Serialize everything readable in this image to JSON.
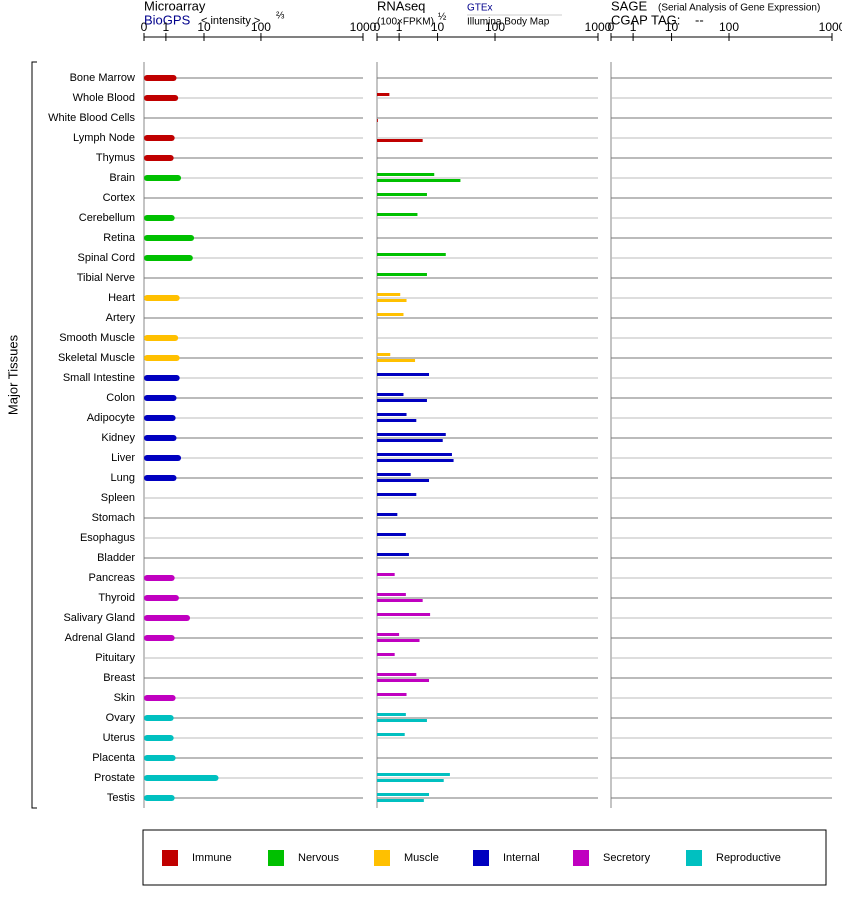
{
  "chart_data": {
    "type": "tissue-expression",
    "panels": [
      {
        "title": "Microarray",
        "source": "BioGPS",
        "unit": "< intensity >",
        "exponent": "⅔"
      },
      {
        "title": "RNAseq",
        "unit": "(100×FPKM)",
        "exponent": "½",
        "source": "GTEx",
        "source2": "Illumina Body Map"
      },
      {
        "title": "SAGE",
        "subtitle": "(Serial Analysis of Gene Expression)",
        "tag_label": "CGAP TAG:",
        "tag": "--"
      }
    ],
    "xlim": [
      0,
      1000
    ],
    "xticks": [
      0,
      1,
      10,
      100,
      1000
    ],
    "ylabel": "Major Tissues",
    "grid": true,
    "groups": [
      {
        "name": "Immune",
        "color": "#c00000",
        "tissues": [
          {
            "name": "Bone Marrow",
            "microarray": 1.9,
            "gtex": null,
            "illumina": null
          },
          {
            "name": "Whole Blood",
            "microarray": 2.1,
            "gtex": 0.56,
            "illumina": null
          },
          {
            "name": "White Blood Cells",
            "microarray": null,
            "gtex": null,
            "illumina": 0.04
          },
          {
            "name": "Lymph Node",
            "microarray": 1.7,
            "gtex": null,
            "illumina": 4.1
          },
          {
            "name": "Thymus",
            "microarray": 1.6,
            "gtex": null,
            "illumina": null
          }
        ]
      },
      {
        "name": "Nervous",
        "color": "#00c000",
        "tissues": [
          {
            "name": "Brain",
            "microarray": 2.5,
            "gtex": 8.2,
            "illumina": 25
          },
          {
            "name": "Cortex",
            "microarray": null,
            "gtex": 5.3,
            "illumina": null
          },
          {
            "name": "Cerebellum",
            "microarray": 1.7,
            "gtex": 3.0,
            "illumina": null
          },
          {
            "name": "Retina",
            "microarray": 5.5,
            "gtex": null,
            "illumina": null
          },
          {
            "name": "Spinal Cord",
            "microarray": 5.1,
            "gtex": 13.9,
            "illumina": null
          },
          {
            "name": "Tibial Nerve",
            "microarray": null,
            "gtex": 5.3,
            "illumina": null
          }
        ]
      },
      {
        "name": "Muscle",
        "color": "#ffc000",
        "tissues": [
          {
            "name": "Heart",
            "microarray": 2.3,
            "gtex": 1.07,
            "illumina": 1.56
          },
          {
            "name": "Artery",
            "microarray": null,
            "gtex": 1.3,
            "illumina": null
          },
          {
            "name": "Smooth Muscle",
            "microarray": 2.1,
            "gtex": null,
            "illumina": null
          },
          {
            "name": "Skeletal Muscle",
            "microarray": 2.3,
            "gtex": 0.6,
            "illumina": 2.6
          }
        ]
      },
      {
        "name": "Internal",
        "color": "#0000c0",
        "tissues": [
          {
            "name": "Small Intestine",
            "microarray": 2.3,
            "gtex": 6.0,
            "illumina": null
          },
          {
            "name": "Colon",
            "microarray": 1.9,
            "gtex": 1.3,
            "illumina": 5.3
          },
          {
            "name": "Adipocyte",
            "microarray": 1.8,
            "gtex": 1.56,
            "illumina": 2.8
          },
          {
            "name": "Kidney",
            "microarray": 1.9,
            "gtex": 13.9,
            "illumina": 12.3
          },
          {
            "name": "Liver",
            "microarray": 2.5,
            "gtex": 17.8,
            "illumina": 19
          },
          {
            "name": "Lung",
            "microarray": 1.9,
            "gtex": 2.0,
            "illumina": 6.0
          },
          {
            "name": "Spleen",
            "microarray": null,
            "gtex": 2.8,
            "illumina": null
          },
          {
            "name": "Stomach",
            "microarray": null,
            "gtex": 0.92,
            "illumina": null
          },
          {
            "name": "Esophagus",
            "microarray": null,
            "gtex": 1.5,
            "illumina": null
          },
          {
            "name": "Bladder",
            "microarray": null,
            "gtex": 1.8,
            "illumina": null
          }
        ]
      },
      {
        "name": "Secretory",
        "color": "#c000c0",
        "tissues": [
          {
            "name": "Pancreas",
            "microarray": 1.7,
            "gtex": 0.8,
            "illumina": null
          },
          {
            "name": "Thyroid",
            "microarray": 2.2,
            "gtex": 1.5,
            "illumina": 4.1
          },
          {
            "name": "Salivary Gland",
            "microarray": 4.3,
            "gtex": 6.4,
            "illumina": null
          },
          {
            "name": "Adrenal Gland",
            "microarray": 1.7,
            "gtex": 1.0,
            "illumina": 3.4
          },
          {
            "name": "Pituitary",
            "microarray": null,
            "gtex": 0.8,
            "illumina": null
          },
          {
            "name": "Breast",
            "microarray": null,
            "gtex": 2.8,
            "illumina": 6.0
          },
          {
            "name": "Skin",
            "microarray": 1.8,
            "gtex": 1.56,
            "illumina": null
          }
        ]
      },
      {
        "name": "Reproductive",
        "color": "#00c0c0",
        "tissues": [
          {
            "name": "Ovary",
            "microarray": 1.6,
            "gtex": 1.5,
            "illumina": 5.3
          },
          {
            "name": "Uterus",
            "microarray": 1.6,
            "gtex": 1.4,
            "illumina": null
          },
          {
            "name": "Placenta",
            "microarray": 1.8,
            "gtex": null,
            "illumina": null
          },
          {
            "name": "Prostate",
            "microarray": 18,
            "gtex": 16.4,
            "illumina": 12.8
          },
          {
            "name": "Testis",
            "microarray": 1.7,
            "gtex": 6.0,
            "illumina": 4.4
          }
        ]
      }
    ]
  }
}
